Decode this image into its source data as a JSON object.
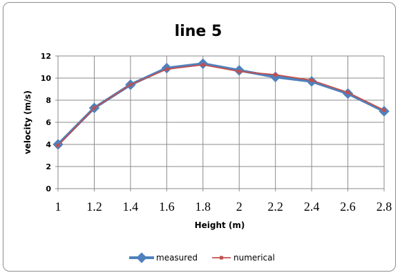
{
  "chart_data": {
    "type": "line",
    "title": "line 5",
    "xlabel": "Height (m)",
    "ylabel": "velocity (m/s)",
    "x": [
      1,
      1.2,
      1.4,
      1.6,
      1.8,
      2,
      2.2,
      2.4,
      2.6,
      2.8
    ],
    "x_tick_labels": [
      "1",
      "1.2",
      "1.4",
      "1.6",
      "1.8",
      "2",
      "2.2",
      "2.4",
      "2.6",
      "2.8"
    ],
    "y_tick_labels": [
      "0",
      "2",
      "4",
      "6",
      "8",
      "10",
      "12"
    ],
    "ylim": [
      0,
      12
    ],
    "grid": true,
    "legend_position": "bottom",
    "series": [
      {
        "name": "measured",
        "color": "#4f81bd",
        "marker": "diamond",
        "values": [
          4.0,
          7.3,
          9.4,
          10.9,
          11.3,
          10.7,
          10.1,
          9.7,
          8.6,
          7.0
        ]
      },
      {
        "name": "numerical",
        "color": "#c0504d",
        "marker": "square",
        "values": [
          3.9,
          7.3,
          9.4,
          10.8,
          11.2,
          10.6,
          10.3,
          9.8,
          8.7,
          7.1
        ]
      }
    ]
  }
}
